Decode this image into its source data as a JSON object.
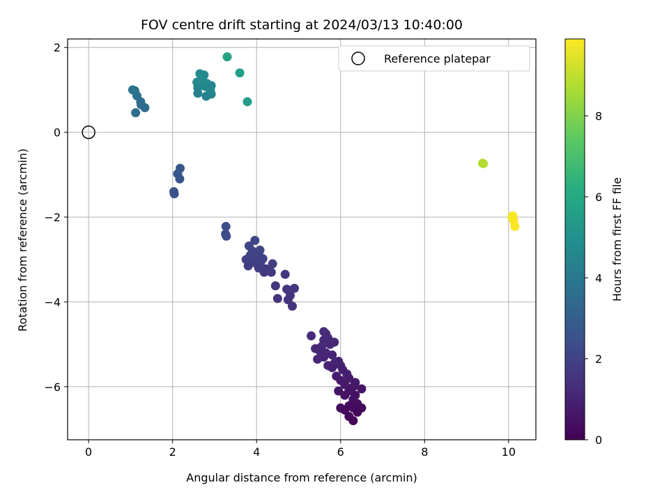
{
  "chart_data": {
    "type": "scatter",
    "title": "FOV centre drift starting at 2024/03/13 10:40:00",
    "xlabel": "Angular distance from reference (arcmin)",
    "ylabel": "Rotation from reference (arcmin)",
    "xlim": [
      -0.5,
      10.65
    ],
    "ylim": [
      -7.25,
      2.2
    ],
    "xticks": [
      0,
      2,
      4,
      6,
      8,
      10
    ],
    "yticks": [
      -6,
      -4,
      -2,
      0,
      2
    ],
    "grid": true,
    "legend": {
      "location": "top-right",
      "entries": [
        "Reference platepar"
      ]
    },
    "reference_point": {
      "x": 0,
      "y": 0
    },
    "colorbar": {
      "label": "Hours from first FF file",
      "colormap": "viridis",
      "range": [
        0,
        9.9
      ],
      "ticks": [
        0,
        2,
        4,
        6,
        8
      ]
    },
    "points": [
      {
        "x": 6.3,
        "y": -6.8,
        "h": 0.1
      },
      {
        "x": 6.2,
        "y": -6.7,
        "h": 0.15
      },
      {
        "x": 6.4,
        "y": -6.6,
        "h": 0.2
      },
      {
        "x": 6.1,
        "y": -6.55,
        "h": 0.25
      },
      {
        "x": 6.3,
        "y": -6.5,
        "h": 0.3
      },
      {
        "x": 6.5,
        "y": -6.5,
        "h": 0.3
      },
      {
        "x": 6.2,
        "y": -6.45,
        "h": 0.35
      },
      {
        "x": 6.4,
        "y": -6.4,
        "h": 0.4
      },
      {
        "x": 6.0,
        "y": -6.5,
        "h": 0.4
      },
      {
        "x": 6.3,
        "y": -6.3,
        "h": 0.45
      },
      {
        "x": 6.1,
        "y": -6.2,
        "h": 0.5
      },
      {
        "x": 6.35,
        "y": -6.2,
        "h": 0.5
      },
      {
        "x": 6.2,
        "y": -6.1,
        "h": 0.55
      },
      {
        "x": 5.95,
        "y": -6.1,
        "h": 0.6
      },
      {
        "x": 6.5,
        "y": -6.05,
        "h": 0.6
      },
      {
        "x": 6.3,
        "y": -6.0,
        "h": 0.65
      },
      {
        "x": 6.1,
        "y": -5.95,
        "h": 0.7
      },
      {
        "x": 6.35,
        "y": -5.9,
        "h": 0.7
      },
      {
        "x": 6.0,
        "y": -5.85,
        "h": 0.75
      },
      {
        "x": 6.2,
        "y": -5.8,
        "h": 0.8
      },
      {
        "x": 5.9,
        "y": -5.75,
        "h": 0.8
      },
      {
        "x": 6.15,
        "y": -5.7,
        "h": 0.85
      },
      {
        "x": 6.05,
        "y": -5.6,
        "h": 0.9
      },
      {
        "x": 5.8,
        "y": -5.55,
        "h": 0.9
      },
      {
        "x": 6.0,
        "y": -5.5,
        "h": 0.95
      },
      {
        "x": 5.85,
        "y": -5.45,
        "h": 1.0
      },
      {
        "x": 5.7,
        "y": -5.5,
        "h": 1.0
      },
      {
        "x": 5.95,
        "y": -5.4,
        "h": 1.0
      },
      {
        "x": 5.6,
        "y": -5.3,
        "h": 1.05
      },
      {
        "x": 5.8,
        "y": -5.25,
        "h": 1.05
      },
      {
        "x": 5.45,
        "y": -5.35,
        "h": 1.1
      },
      {
        "x": 5.65,
        "y": -5.2,
        "h": 1.1
      },
      {
        "x": 5.5,
        "y": -5.15,
        "h": 1.1
      },
      {
        "x": 5.55,
        "y": -5.05,
        "h": 1.15
      },
      {
        "x": 5.4,
        "y": -5.1,
        "h": 1.15
      },
      {
        "x": 5.75,
        "y": -5.0,
        "h": 1.15
      },
      {
        "x": 5.6,
        "y": -4.9,
        "h": 1.2
      },
      {
        "x": 5.85,
        "y": -4.95,
        "h": 1.2
      },
      {
        "x": 5.7,
        "y": -4.85,
        "h": 1.2
      },
      {
        "x": 5.3,
        "y": -4.8,
        "h": 1.25
      },
      {
        "x": 5.65,
        "y": -4.75,
        "h": 1.25
      },
      {
        "x": 5.6,
        "y": -4.7,
        "h": 1.3
      },
      {
        "x": 4.85,
        "y": -4.1,
        "h": 1.45
      },
      {
        "x": 4.75,
        "y": -3.95,
        "h": 1.5
      },
      {
        "x": 4.5,
        "y": -3.92,
        "h": 1.5
      },
      {
        "x": 4.8,
        "y": -3.85,
        "h": 1.55
      },
      {
        "x": 4.72,
        "y": -3.7,
        "h": 1.55
      },
      {
        "x": 4.9,
        "y": -3.68,
        "h": 1.6
      },
      {
        "x": 4.45,
        "y": -3.62,
        "h": 1.6
      },
      {
        "x": 4.68,
        "y": -3.35,
        "h": 1.65
      },
      {
        "x": 4.35,
        "y": -3.3,
        "h": 1.7
      },
      {
        "x": 4.18,
        "y": -3.3,
        "h": 1.75
      },
      {
        "x": 4.22,
        "y": -3.22,
        "h": 1.75
      },
      {
        "x": 4.05,
        "y": -3.2,
        "h": 1.8
      },
      {
        "x": 3.8,
        "y": -3.15,
        "h": 1.8
      },
      {
        "x": 4.0,
        "y": -3.1,
        "h": 1.85
      },
      {
        "x": 4.38,
        "y": -3.1,
        "h": 1.85
      },
      {
        "x": 3.9,
        "y": -3.05,
        "h": 1.9
      },
      {
        "x": 4.1,
        "y": -3.05,
        "h": 1.9
      },
      {
        "x": 3.75,
        "y": -3.0,
        "h": 1.95
      },
      {
        "x": 4.15,
        "y": -2.98,
        "h": 1.95
      },
      {
        "x": 3.95,
        "y": -2.95,
        "h": 2.0
      },
      {
        "x": 3.85,
        "y": -2.9,
        "h": 2.0
      },
      {
        "x": 4.05,
        "y": -2.85,
        "h": 2.05
      },
      {
        "x": 3.9,
        "y": -2.8,
        "h": 2.05
      },
      {
        "x": 4.08,
        "y": -2.78,
        "h": 2.1
      },
      {
        "x": 3.82,
        "y": -2.68,
        "h": 2.1
      },
      {
        "x": 3.96,
        "y": -2.55,
        "h": 2.15
      },
      {
        "x": 3.28,
        "y": -2.45,
        "h": 2.3
      },
      {
        "x": 3.26,
        "y": -2.4,
        "h": 2.3
      },
      {
        "x": 3.27,
        "y": -2.22,
        "h": 2.35
      },
      {
        "x": 2.04,
        "y": -1.45,
        "h": 2.55
      },
      {
        "x": 2.03,
        "y": -1.4,
        "h": 2.6
      },
      {
        "x": 2.17,
        "y": -1.1,
        "h": 2.65
      },
      {
        "x": 2.12,
        "y": -0.98,
        "h": 2.7
      },
      {
        "x": 2.18,
        "y": -0.85,
        "h": 2.75
      },
      {
        "x": 1.12,
        "y": 0.46,
        "h": 3.5
      },
      {
        "x": 1.34,
        "y": 0.58,
        "h": 3.55
      },
      {
        "x": 1.25,
        "y": 0.65,
        "h": 3.6
      },
      {
        "x": 1.24,
        "y": 0.72,
        "h": 3.65
      },
      {
        "x": 1.15,
        "y": 0.86,
        "h": 3.7
      },
      {
        "x": 1.05,
        "y": 1.0,
        "h": 3.75
      },
      {
        "x": 1.1,
        "y": 0.98,
        "h": 3.8
      },
      {
        "x": 2.6,
        "y": 0.92,
        "h": 4.4
      },
      {
        "x": 2.8,
        "y": 0.85,
        "h": 4.45
      },
      {
        "x": 2.92,
        "y": 0.9,
        "h": 4.5
      },
      {
        "x": 2.6,
        "y": 1.05,
        "h": 4.5
      },
      {
        "x": 2.9,
        "y": 1.0,
        "h": 4.55
      },
      {
        "x": 2.78,
        "y": 1.08,
        "h": 4.6
      },
      {
        "x": 2.92,
        "y": 1.1,
        "h": 4.6
      },
      {
        "x": 2.58,
        "y": 1.18,
        "h": 4.65
      },
      {
        "x": 2.72,
        "y": 1.22,
        "h": 4.7
      },
      {
        "x": 2.82,
        "y": 1.15,
        "h": 4.7
      },
      {
        "x": 2.75,
        "y": 1.35,
        "h": 4.75
      },
      {
        "x": 2.65,
        "y": 1.38,
        "h": 4.8
      },
      {
        "x": 3.78,
        "y": 0.72,
        "h": 5.5
      },
      {
        "x": 3.6,
        "y": 1.4,
        "h": 5.6
      },
      {
        "x": 3.3,
        "y": 1.78,
        "h": 5.7
      },
      {
        "x": 9.38,
        "y": -0.73,
        "h": 8.8
      },
      {
        "x": 9.4,
        "y": -0.74,
        "h": 8.85
      },
      {
        "x": 10.08,
        "y": -2.0,
        "h": 9.8
      },
      {
        "x": 10.1,
        "y": -1.97,
        "h": 9.85
      },
      {
        "x": 10.12,
        "y": -2.08,
        "h": 9.85
      },
      {
        "x": 10.15,
        "y": -2.22,
        "h": 9.9
      }
    ]
  }
}
